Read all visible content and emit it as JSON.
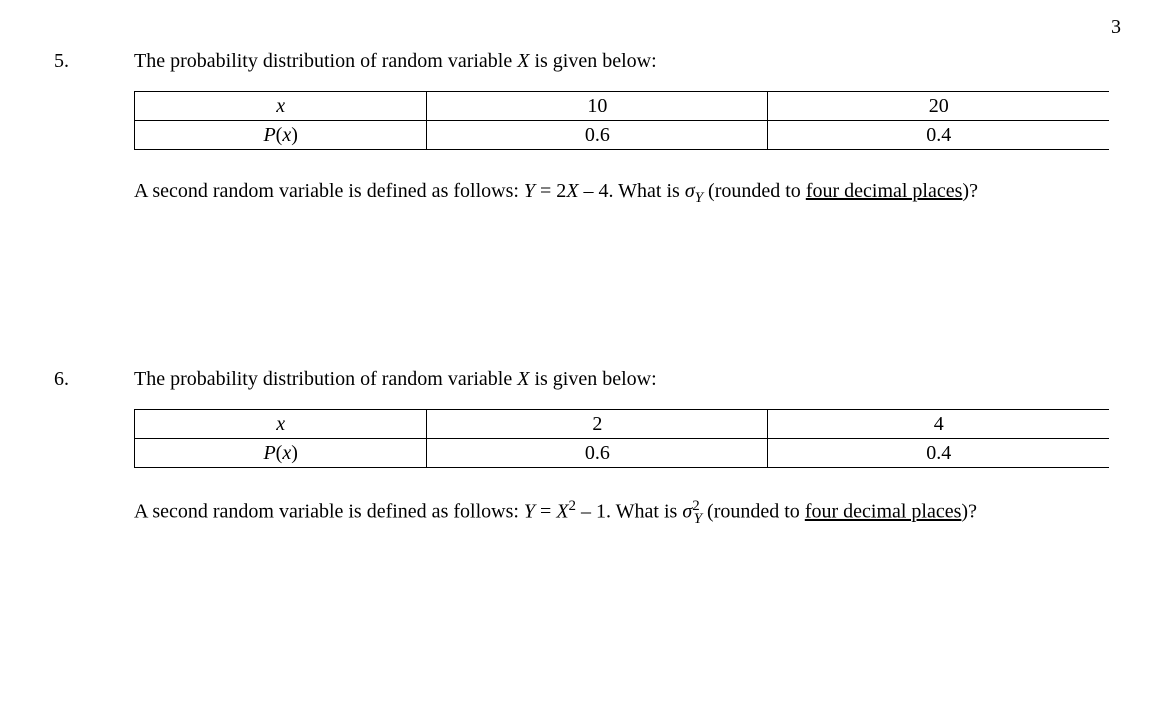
{
  "page_number": "3",
  "q5": {
    "number": "5.",
    "intro_prefix": "The probability distribution of random variable ",
    "intro_var": "X",
    "intro_suffix": " is given below:",
    "row1_label": "x",
    "row1_v1": "10",
    "row1_v2": "20",
    "row2_label_P": "P",
    "row2_label_x": "x",
    "row2_v1": "0.6",
    "row2_v2": "0.4",
    "follow_a": "A second random variable is defined as follows:  ",
    "follow_eq_lhs": "Y",
    "follow_eq_mid": " = 2",
    "follow_eq_X": "X",
    "follow_eq_suffix": " – 4.",
    "follow_b": "   What is ",
    "sigma": "σ",
    "sigma_sub": "Y",
    "follow_c": " (rounded to ",
    "follow_underline": "four decimal places",
    "follow_d": ")?"
  },
  "q6": {
    "number": "6.",
    "intro_prefix": "The probability distribution of random variable ",
    "intro_var": "X",
    "intro_suffix": " is given below:",
    "row1_label": "x",
    "row1_v1": "2",
    "row1_v2": "4",
    "row2_label_P": "P",
    "row2_label_x": "x",
    "row2_v1": "0.6",
    "row2_v2": "0.4",
    "follow_a": "A second random variable is defined as follows:  ",
    "follow_eq_lhs": "Y",
    "follow_eq_mid": " = ",
    "follow_eq_X": "X",
    "follow_eq_sup": "2",
    "follow_eq_suffix": " – 1.",
    "follow_b": "   What is ",
    "sigma": "σ",
    "sigma_sub": "Y",
    "sigma_sup": "2",
    "follow_c": " (rounded to ",
    "follow_underline": "four decimal places",
    "follow_d": ")?"
  }
}
